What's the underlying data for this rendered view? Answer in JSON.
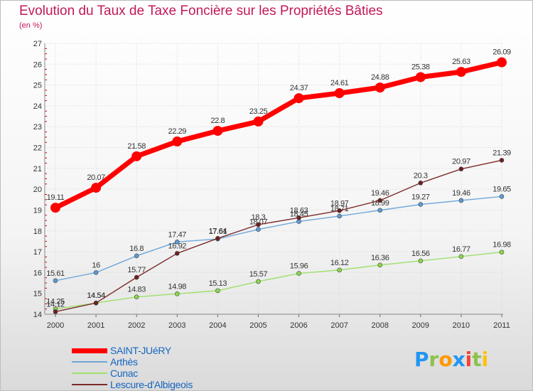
{
  "header": {
    "title": "Evolution du Taux de Taxe Foncière sur les Propriétés Bâties",
    "subtitle": "(en %)"
  },
  "logo": {
    "text": "Proxiti",
    "letters": [
      {
        "ch": "P",
        "color": "#2196f3"
      },
      {
        "ch": "r",
        "color": "#8bc34a"
      },
      {
        "ch": "o",
        "color": "#ff9800"
      },
      {
        "ch": "x",
        "color": "#2196f3"
      },
      {
        "ch": "i",
        "color": "#f44336"
      },
      {
        "ch": "t",
        "color": "#8bc34a"
      },
      {
        "ch": "i",
        "color": "#ffc107"
      }
    ]
  },
  "chart_data": {
    "type": "line",
    "title": "Evolution du Taux de Taxe Foncière sur les Propriétés Bâties",
    "ylabel": "(en %)",
    "xlabel": "",
    "ylim": [
      14,
      27
    ],
    "yticks": [
      "14",
      "15",
      "16",
      "17",
      "18",
      "19",
      "20",
      "21",
      "22",
      "23",
      "24",
      "25",
      "26",
      "27"
    ],
    "grid": true,
    "legend_position": "bottom-left",
    "categories": [
      "2000",
      "2001",
      "2002",
      "2003",
      "2004",
      "2005",
      "2006",
      "2007",
      "2008",
      "2009",
      "2010",
      "2011"
    ],
    "series": [
      {
        "name": "SAINT-JUéRY",
        "color": "#ff0000",
        "point_color": "#ff0000",
        "width": "thick",
        "values": [
          19.11,
          20.07,
          21.58,
          22.29,
          22.8,
          23.25,
          24.37,
          24.61,
          24.88,
          25.38,
          25.63,
          26.09
        ],
        "labels": [
          "19.11",
          "20.07",
          "21.58",
          "22.29",
          "22.8",
          "23.25",
          "24.37",
          "24.61",
          "24.88",
          "25.38",
          "25.63",
          "26.09"
        ]
      },
      {
        "name": "Arthès",
        "color": "#6fa7d8",
        "point_color": "#5b9bd5",
        "width": "thin",
        "values": [
          15.61,
          16,
          16.8,
          17.47,
          17.61,
          18.07,
          18.45,
          18.71,
          18.99,
          19.27,
          19.46,
          19.65
        ],
        "labels": [
          "15.61",
          "16",
          "16.8",
          "17.47",
          "17.61",
          "18.07",
          "18.45",
          "18.71",
          "18.99",
          "19.27",
          "19.46",
          "19.65"
        ]
      },
      {
        "name": "Cunac",
        "color": "#9ee06a",
        "point_color": "#8bd84a",
        "width": "thin",
        "values": [
          14.25,
          14.54,
          14.83,
          14.98,
          15.13,
          15.57,
          15.96,
          16.12,
          16.36,
          16.56,
          16.77,
          16.98
        ],
        "labels": [
          "14.25",
          "14.54",
          "14.83",
          "14.98",
          "15.13",
          "15.57",
          "15.96",
          "16.12",
          "16.36",
          "16.56",
          "16.77",
          "16.98"
        ]
      },
      {
        "name": "Lescure-d'Albigeois",
        "color": "#7b2a2a",
        "point_color": "#6d1f1f",
        "width": "thin",
        "values": [
          14.12,
          14.54,
          15.77,
          16.92,
          17.64,
          18.3,
          18.63,
          18.97,
          19.46,
          20.3,
          20.97,
          21.39
        ],
        "labels": [
          "14.12",
          "14.54",
          "15.77",
          "16.92",
          "17.64",
          "18.3",
          "18.63",
          "18.97",
          "19.46",
          "20.3",
          "20.97",
          "21.39"
        ]
      }
    ]
  }
}
